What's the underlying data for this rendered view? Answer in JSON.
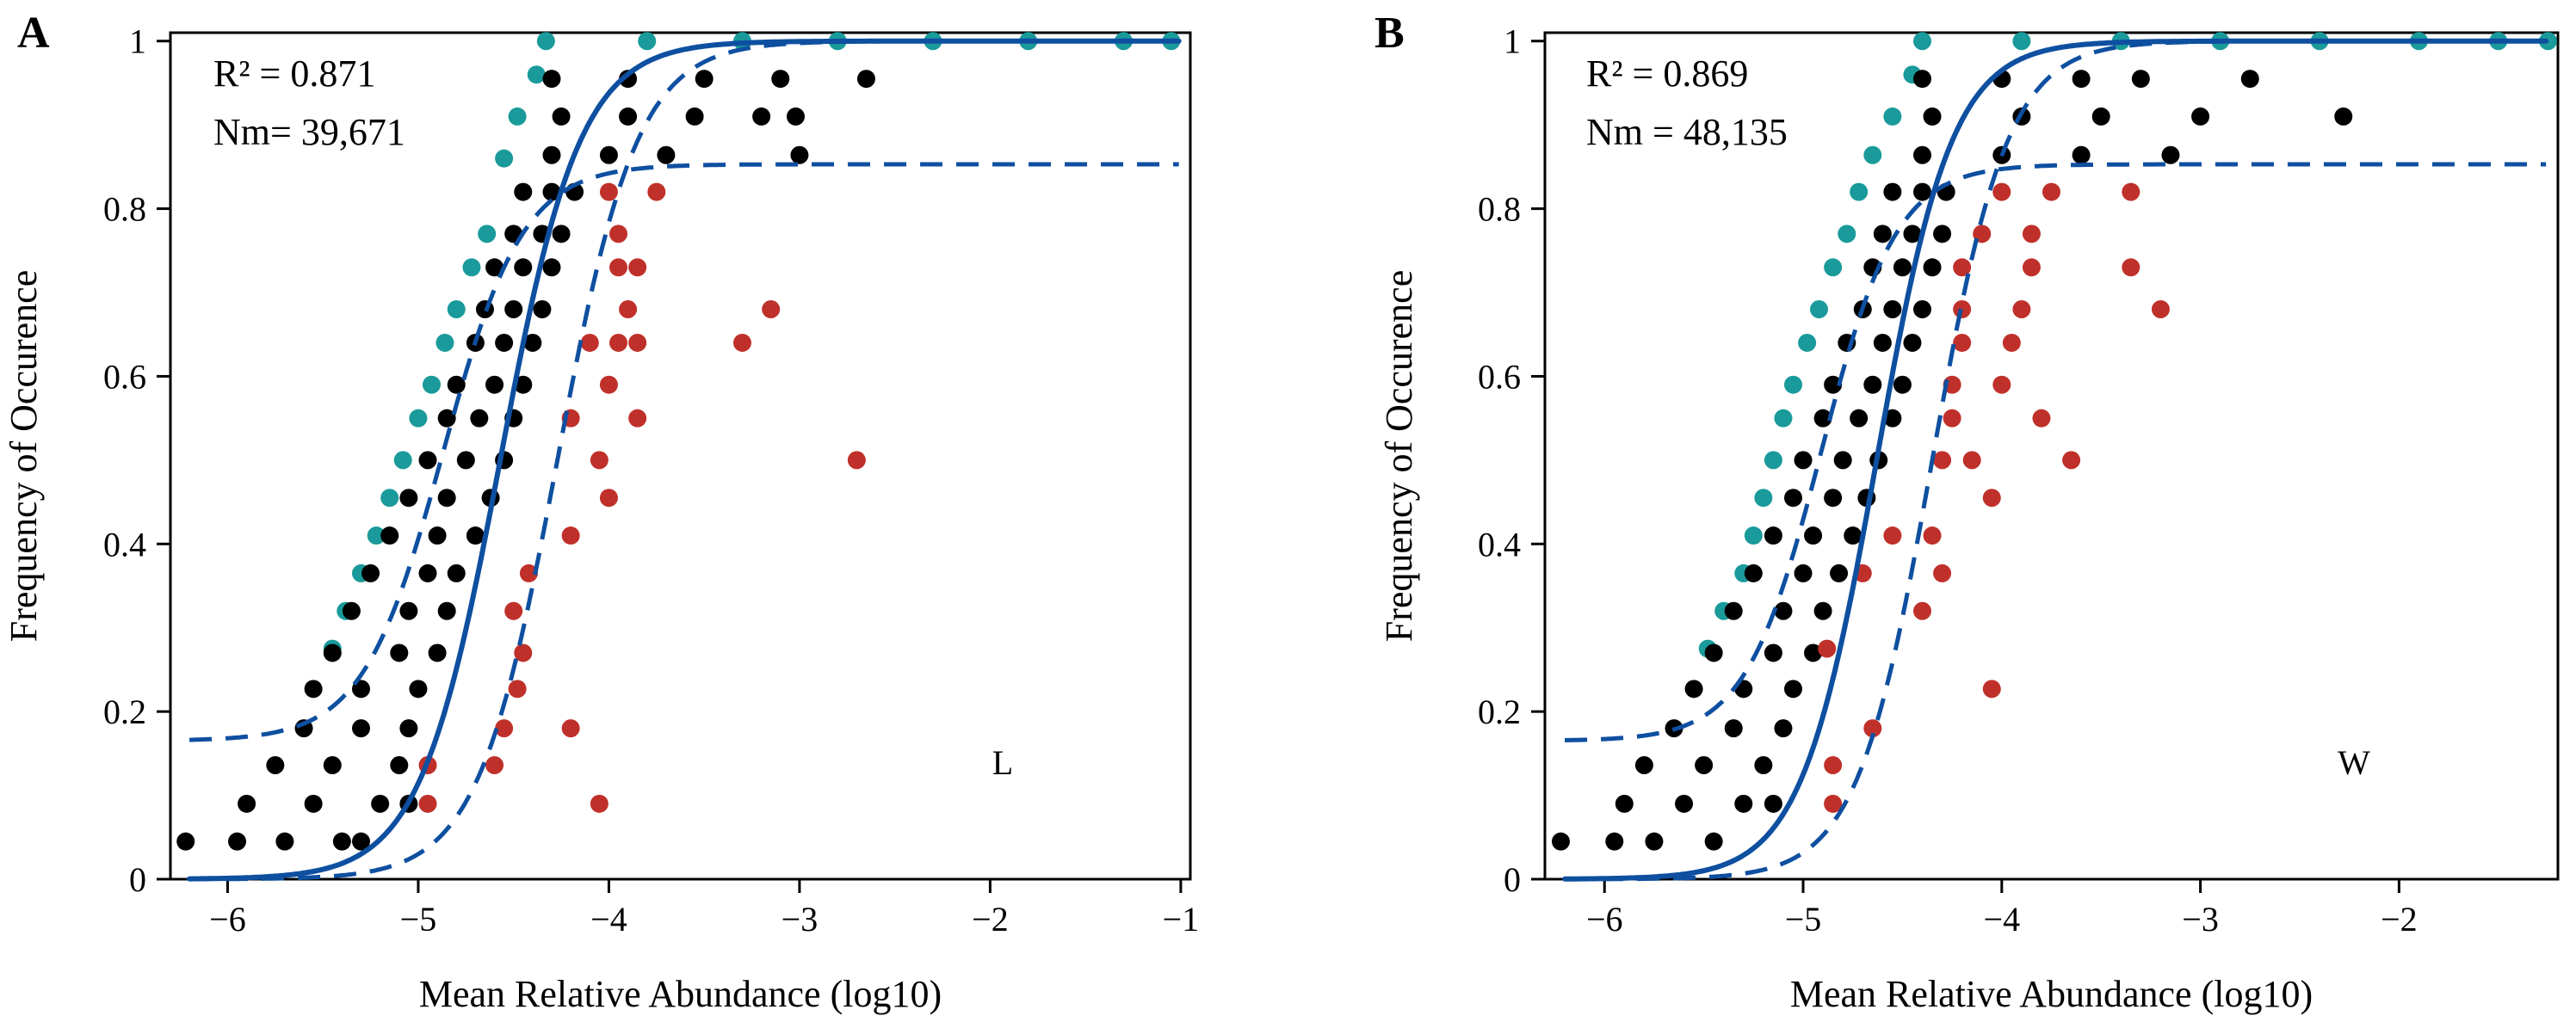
{
  "chart_data": [
    {
      "type": "scatter",
      "panel_label": "A",
      "xlabel": "Mean Relative Abundance (log10)",
      "ylabel": "Frequency of Occurence",
      "xlim": [
        -6.3,
        -0.95
      ],
      "ylim": [
        0,
        1.01
      ],
      "xticks": [
        -6,
        -5,
        -4,
        -3,
        -2,
        -1
      ],
      "xtick_labels": [
        "−6",
        "−5",
        "−4",
        "−3",
        "−2",
        "−1"
      ],
      "yticks": [
        0,
        0.2,
        0.4,
        0.6,
        0.8,
        1
      ],
      "ytick_labels": [
        "0",
        "0.2",
        "0.4",
        "0.6",
        "0.8",
        "1"
      ],
      "stats": {
        "r2": "R² = 0.871",
        "nm": "Nm= 39,671"
      },
      "group_label": "L",
      "model": {
        "m": -4.57,
        "s": 0.21,
        "ci_upper_plateau": 0.853,
        "ci_lower_shift": 0.3,
        "ci_upper_shift": 0.3
      },
      "colors": {
        "below": "#1a9a9a",
        "within": "#000000",
        "above": "#c0302a",
        "fit": "#0e4fa0"
      },
      "series": [
        {
          "name": "below",
          "color": "#1a9a9a",
          "points": [
            [
              -4.33,
              1
            ],
            [
              -3.8,
              1
            ],
            [
              -3.3,
              1
            ],
            [
              -2.8,
              1
            ],
            [
              -2.3,
              1
            ],
            [
              -1.8,
              1
            ],
            [
              -1.3,
              1
            ],
            [
              -1.05,
              1
            ],
            [
              -4.38,
              0.96
            ],
            [
              -4.48,
              0.91
            ],
            [
              -4.55,
              0.86
            ],
            [
              -4.64,
              0.77
            ],
            [
              -4.72,
              0.73
            ],
            [
              -4.8,
              0.68
            ],
            [
              -4.86,
              0.64
            ],
            [
              -4.93,
              0.59
            ],
            [
              -5.0,
              0.55
            ],
            [
              -5.08,
              0.5
            ],
            [
              -5.15,
              0.455
            ],
            [
              -5.22,
              0.41
            ],
            [
              -5.3,
              0.365
            ],
            [
              -5.38,
              0.32
            ],
            [
              -5.45,
              0.275
            ]
          ]
        },
        {
          "name": "within",
          "color": "#000000",
          "points": [
            [
              -6.22,
              0.045
            ],
            [
              -5.95,
              0.045
            ],
            [
              -5.7,
              0.045
            ],
            [
              -5.4,
              0.045
            ],
            [
              -5.3,
              0.045
            ],
            [
              -5.9,
              0.09
            ],
            [
              -5.55,
              0.09
            ],
            [
              -5.2,
              0.09
            ],
            [
              -5.05,
              0.09
            ],
            [
              -5.75,
              0.136
            ],
            [
              -5.45,
              0.136
            ],
            [
              -5.1,
              0.136
            ],
            [
              -5.6,
              0.18
            ],
            [
              -5.3,
              0.18
            ],
            [
              -5.05,
              0.18
            ],
            [
              -5.55,
              0.227
            ],
            [
              -5.3,
              0.227
            ],
            [
              -5.0,
              0.227
            ],
            [
              -5.45,
              0.27
            ],
            [
              -5.1,
              0.27
            ],
            [
              -4.9,
              0.27
            ],
            [
              -5.35,
              0.32
            ],
            [
              -5.05,
              0.32
            ],
            [
              -4.85,
              0.32
            ],
            [
              -5.25,
              0.365
            ],
            [
              -4.95,
              0.365
            ],
            [
              -4.8,
              0.365
            ],
            [
              -5.15,
              0.41
            ],
            [
              -4.9,
              0.41
            ],
            [
              -4.7,
              0.41
            ],
            [
              -5.05,
              0.455
            ],
            [
              -4.85,
              0.455
            ],
            [
              -4.62,
              0.455
            ],
            [
              -4.95,
              0.5
            ],
            [
              -4.75,
              0.5
            ],
            [
              -4.55,
              0.5
            ],
            [
              -4.85,
              0.55
            ],
            [
              -4.68,
              0.55
            ],
            [
              -4.5,
              0.55
            ],
            [
              -4.8,
              0.59
            ],
            [
              -4.6,
              0.59
            ],
            [
              -4.45,
              0.59
            ],
            [
              -4.7,
              0.64
            ],
            [
              -4.55,
              0.64
            ],
            [
              -4.4,
              0.64
            ],
            [
              -4.65,
              0.68
            ],
            [
              -4.5,
              0.68
            ],
            [
              -4.35,
              0.68
            ],
            [
              -4.6,
              0.73
            ],
            [
              -4.45,
              0.73
            ],
            [
              -4.3,
              0.73
            ],
            [
              -4.5,
              0.77
            ],
            [
              -4.35,
              0.77
            ],
            [
              -4.25,
              0.77
            ],
            [
              -4.45,
              0.82
            ],
            [
              -4.3,
              0.82
            ],
            [
              -4.18,
              0.82
            ],
            [
              -4.3,
              0.864
            ],
            [
              -4.0,
              0.864
            ],
            [
              -3.7,
              0.864
            ],
            [
              -3.0,
              0.864
            ],
            [
              -4.25,
              0.91
            ],
            [
              -3.9,
              0.91
            ],
            [
              -3.55,
              0.91
            ],
            [
              -3.2,
              0.91
            ],
            [
              -3.02,
              0.91
            ],
            [
              -4.3,
              0.955
            ],
            [
              -3.9,
              0.955
            ],
            [
              -3.5,
              0.955
            ],
            [
              -3.1,
              0.955
            ],
            [
              -2.65,
              0.955
            ]
          ]
        },
        {
          "name": "above",
          "color": "#c0302a",
          "points": [
            [
              -4.95,
              0.09
            ],
            [
              -4.05,
              0.09
            ],
            [
              -4.95,
              0.136
            ],
            [
              -4.6,
              0.136
            ],
            [
              -4.55,
              0.18
            ],
            [
              -4.2,
              0.18
            ],
            [
              -4.48,
              0.227
            ],
            [
              -4.45,
              0.27
            ],
            [
              -4.5,
              0.32
            ],
            [
              -4.42,
              0.365
            ],
            [
              -4.2,
              0.41
            ],
            [
              -4.0,
              0.455
            ],
            [
              -4.05,
              0.5
            ],
            [
              -2.7,
              0.5
            ],
            [
              -4.2,
              0.55
            ],
            [
              -3.85,
              0.55
            ],
            [
              -4.0,
              0.59
            ],
            [
              -4.1,
              0.64
            ],
            [
              -3.95,
              0.64
            ],
            [
              -3.85,
              0.64
            ],
            [
              -3.3,
              0.64
            ],
            [
              -3.9,
              0.68
            ],
            [
              -3.15,
              0.68
            ],
            [
              -3.95,
              0.73
            ],
            [
              -3.85,
              0.73
            ],
            [
              -3.95,
              0.77
            ],
            [
              -4.0,
              0.82
            ],
            [
              -3.75,
              0.82
            ]
          ]
        }
      ]
    },
    {
      "type": "scatter",
      "panel_label": "B",
      "xlabel": "Mean Relative Abundance (log10)",
      "ylabel": "Frequency of Occurence",
      "xlim": [
        -6.3,
        -1.2
      ],
      "ylim": [
        0,
        1.01
      ],
      "xticks": [
        -6,
        -5,
        -4,
        -3,
        -2
      ],
      "xtick_labels": [
        "−6",
        "−5",
        "−4",
        "−3",
        "−2"
      ],
      "yticks": [
        0,
        0.2,
        0.4,
        0.6,
        0.8,
        1
      ],
      "ytick_labels": [
        "0",
        "0.2",
        "0.4",
        "0.6",
        "0.8",
        "1"
      ],
      "stats": {
        "r2": "R² = 0.869",
        "nm": "Nm = 48,135"
      },
      "group_label": "W",
      "model": {
        "m": -4.63,
        "s": 0.19,
        "ci_upper_plateau": 0.853,
        "ci_lower_shift": 0.28,
        "ci_upper_shift": 0.28
      },
      "colors": {
        "below": "#1a9a9a",
        "within": "#000000",
        "above": "#c0302a",
        "fit": "#0e4fa0"
      },
      "series": [
        {
          "name": "below",
          "color": "#1a9a9a",
          "points": [
            [
              -4.4,
              1
            ],
            [
              -3.9,
              1
            ],
            [
              -3.4,
              1
            ],
            [
              -2.9,
              1
            ],
            [
              -2.4,
              1
            ],
            [
              -1.9,
              1
            ],
            [
              -1.5,
              1
            ],
            [
              -1.25,
              1
            ],
            [
              -4.45,
              0.96
            ],
            [
              -4.55,
              0.91
            ],
            [
              -4.65,
              0.864
            ],
            [
              -4.72,
              0.82
            ],
            [
              -4.78,
              0.77
            ],
            [
              -4.85,
              0.73
            ],
            [
              -4.92,
              0.68
            ],
            [
              -4.98,
              0.64
            ],
            [
              -5.05,
              0.59
            ],
            [
              -5.1,
              0.55
            ],
            [
              -5.15,
              0.5
            ],
            [
              -5.2,
              0.455
            ],
            [
              -5.25,
              0.41
            ],
            [
              -5.3,
              0.365
            ],
            [
              -5.4,
              0.32
            ],
            [
              -5.48,
              0.275
            ]
          ]
        },
        {
          "name": "within",
          "color": "#000000",
          "points": [
            [
              -6.22,
              0.045
            ],
            [
              -5.95,
              0.045
            ],
            [
              -5.75,
              0.045
            ],
            [
              -5.45,
              0.045
            ],
            [
              -5.9,
              0.09
            ],
            [
              -5.6,
              0.09
            ],
            [
              -5.3,
              0.09
            ],
            [
              -5.15,
              0.09
            ],
            [
              -5.8,
              0.136
            ],
            [
              -5.5,
              0.136
            ],
            [
              -5.2,
              0.136
            ],
            [
              -5.65,
              0.18
            ],
            [
              -5.35,
              0.18
            ],
            [
              -5.1,
              0.18
            ],
            [
              -5.55,
              0.227
            ],
            [
              -5.3,
              0.227
            ],
            [
              -5.05,
              0.227
            ],
            [
              -5.45,
              0.27
            ],
            [
              -5.15,
              0.27
            ],
            [
              -4.95,
              0.27
            ],
            [
              -5.35,
              0.32
            ],
            [
              -5.1,
              0.32
            ],
            [
              -4.9,
              0.32
            ],
            [
              -5.25,
              0.365
            ],
            [
              -5.0,
              0.365
            ],
            [
              -4.82,
              0.365
            ],
            [
              -5.15,
              0.41
            ],
            [
              -4.95,
              0.41
            ],
            [
              -4.75,
              0.41
            ],
            [
              -5.05,
              0.455
            ],
            [
              -4.85,
              0.455
            ],
            [
              -4.68,
              0.455
            ],
            [
              -5.0,
              0.5
            ],
            [
              -4.8,
              0.5
            ],
            [
              -4.62,
              0.5
            ],
            [
              -4.9,
              0.55
            ],
            [
              -4.72,
              0.55
            ],
            [
              -4.55,
              0.55
            ],
            [
              -4.85,
              0.59
            ],
            [
              -4.65,
              0.59
            ],
            [
              -4.5,
              0.59
            ],
            [
              -4.78,
              0.64
            ],
            [
              -4.6,
              0.64
            ],
            [
              -4.45,
              0.64
            ],
            [
              -4.7,
              0.68
            ],
            [
              -4.55,
              0.68
            ],
            [
              -4.4,
              0.68
            ],
            [
              -4.65,
              0.73
            ],
            [
              -4.5,
              0.73
            ],
            [
              -4.35,
              0.73
            ],
            [
              -4.6,
              0.77
            ],
            [
              -4.45,
              0.77
            ],
            [
              -4.3,
              0.77
            ],
            [
              -4.55,
              0.82
            ],
            [
              -4.4,
              0.82
            ],
            [
              -4.28,
              0.82
            ],
            [
              -4.4,
              0.864
            ],
            [
              -4.0,
              0.864
            ],
            [
              -3.6,
              0.864
            ],
            [
              -3.15,
              0.864
            ],
            [
              -4.35,
              0.91
            ],
            [
              -3.9,
              0.91
            ],
            [
              -3.5,
              0.91
            ],
            [
              -3.0,
              0.91
            ],
            [
              -2.28,
              0.91
            ],
            [
              -4.4,
              0.955
            ],
            [
              -4.0,
              0.955
            ],
            [
              -3.6,
              0.955
            ],
            [
              -3.3,
              0.955
            ],
            [
              -2.75,
              0.955
            ]
          ]
        },
        {
          "name": "above",
          "color": "#c0302a",
          "points": [
            [
              -4.85,
              0.09
            ],
            [
              -4.85,
              0.136
            ],
            [
              -4.65,
              0.18
            ],
            [
              -4.05,
              0.227
            ],
            [
              -4.88,
              0.275
            ],
            [
              -4.3,
              0.365
            ],
            [
              -4.4,
              0.32
            ],
            [
              -4.7,
              0.365
            ],
            [
              -4.55,
              0.41
            ],
            [
              -4.35,
              0.41
            ],
            [
              -4.05,
              0.455
            ],
            [
              -4.3,
              0.5
            ],
            [
              -4.15,
              0.5
            ],
            [
              -3.65,
              0.5
            ],
            [
              -4.25,
              0.55
            ],
            [
              -3.8,
              0.55
            ],
            [
              -4.25,
              0.59
            ],
            [
              -4.0,
              0.59
            ],
            [
              -4.2,
              0.64
            ],
            [
              -3.95,
              0.64
            ],
            [
              -4.2,
              0.68
            ],
            [
              -3.9,
              0.68
            ],
            [
              -3.2,
              0.68
            ],
            [
              -4.2,
              0.73
            ],
            [
              -3.85,
              0.73
            ],
            [
              -3.35,
              0.73
            ],
            [
              -4.1,
              0.77
            ],
            [
              -3.85,
              0.77
            ],
            [
              -4.0,
              0.82
            ],
            [
              -3.75,
              0.82
            ],
            [
              -3.35,
              0.82
            ]
          ]
        }
      ]
    }
  ]
}
